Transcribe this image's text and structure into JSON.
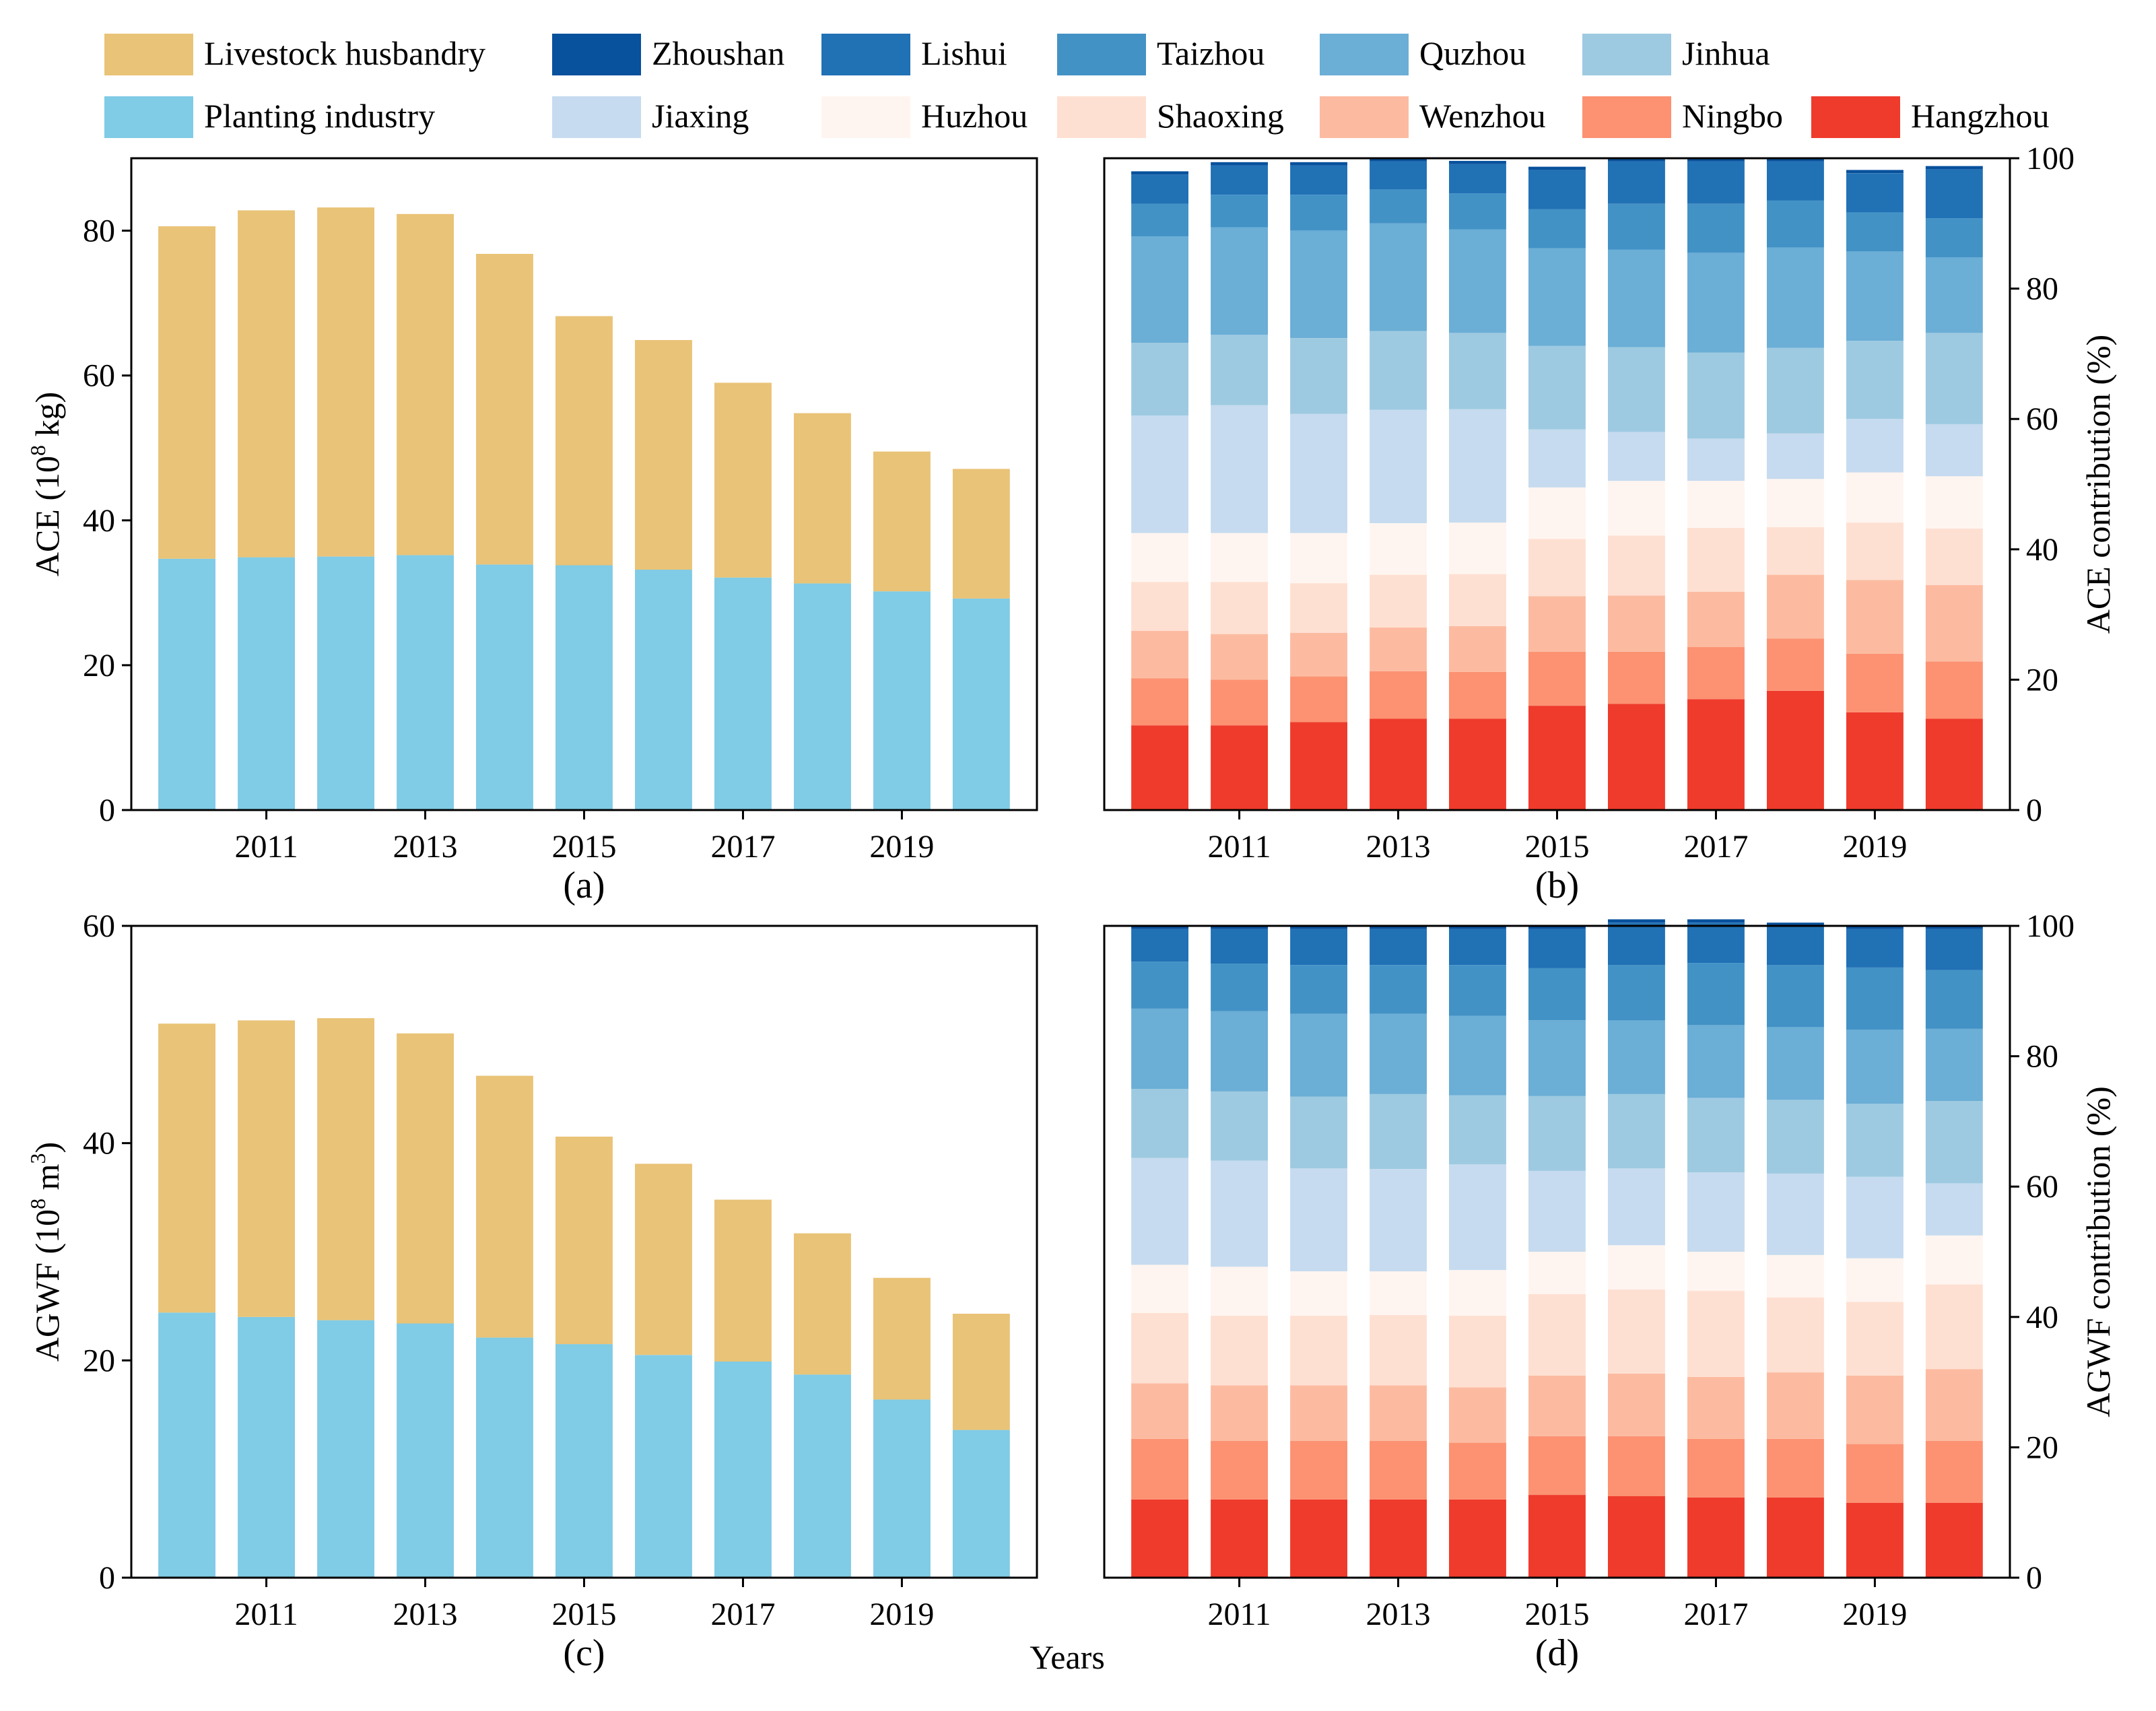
{
  "xlabel": "Years",
  "legend": {
    "items": [
      {
        "label": "Livestock husbandry",
        "color": "#E9C377"
      },
      {
        "label": "Zhoushan",
        "color": "#08519C"
      },
      {
        "label": "Lishui",
        "color": "#2171B5"
      },
      {
        "label": "Taizhou",
        "color": "#4292C6"
      },
      {
        "label": "Quzhou",
        "color": "#6BAED6"
      },
      {
        "label": "Jinhua",
        "color": "#9ECAE1"
      },
      {
        "label": "Planting industry",
        "color": "#80CBE5"
      },
      {
        "label": "Jiaxing",
        "color": "#C6DBEF"
      },
      {
        "label": "Huzhou",
        "color": "#FFF5F0"
      },
      {
        "label": "Shaoxing",
        "color": "#FEE0D2"
      },
      {
        "label": "Wenzhou",
        "color": "#FCBBA1"
      },
      {
        "label": "Ningbo",
        "color": "#FC9272"
      },
      {
        "label": "Hangzhou",
        "color": "#EF3B2C"
      }
    ]
  },
  "chart_data": [
    {
      "id": "a",
      "type": "bar",
      "stacked": true,
      "panel_label": "(a)",
      "ylabel": "ACE (10^8 kg)",
      "ylabel_parts": {
        "prefix": "ACE (10",
        "sup": "8",
        "suffix": " kg)"
      },
      "years": [
        2010,
        2011,
        2012,
        2013,
        2014,
        2015,
        2016,
        2017,
        2018,
        2019,
        2020
      ],
      "xticks": [
        "2011",
        "2013",
        "2015",
        "2017",
        "2019"
      ],
      "ylim": [
        0,
        90
      ],
      "yticks": [
        "0",
        "20",
        "40",
        "60",
        "80"
      ],
      "series": [
        {
          "name": "Planting industry",
          "color": "#80CBE5",
          "values": [
            34.7,
            34.9,
            35.0,
            35.2,
            33.9,
            33.8,
            33.2,
            32.1,
            31.3,
            30.2,
            29.2
          ]
        },
        {
          "name": "Livestock husbandry",
          "color": "#E9C377",
          "values": [
            45.9,
            47.9,
            48.2,
            47.1,
            42.9,
            34.4,
            31.7,
            26.9,
            23.5,
            19.3,
            17.9
          ]
        }
      ]
    },
    {
      "id": "b",
      "type": "bar",
      "stacked": true,
      "percent": true,
      "panel_label": "(b)",
      "ylabel": "ACE contribution (%)",
      "years": [
        2010,
        2011,
        2012,
        2013,
        2014,
        2015,
        2016,
        2017,
        2018,
        2019,
        2020
      ],
      "xticks": [
        "2011",
        "2013",
        "2015",
        "2017",
        "2019"
      ],
      "ylim": [
        0,
        100
      ],
      "yticks": [
        "0",
        "20",
        "40",
        "60",
        "80",
        "100"
      ],
      "series": [
        {
          "name": "Hangzhou",
          "color": "#EF3B2C",
          "values": [
            13.0,
            13.0,
            13.5,
            14.0,
            14.0,
            16.0,
            16.3,
            17.0,
            18.3,
            15.0,
            14.0
          ]
        },
        {
          "name": "Ningbo",
          "color": "#FC9272",
          "values": [
            7.2,
            7.0,
            7.0,
            7.3,
            7.2,
            8.3,
            8.0,
            8.0,
            8.0,
            9.0,
            8.8
          ]
        },
        {
          "name": "Wenzhou",
          "color": "#FCBBA1",
          "values": [
            7.3,
            7.0,
            6.7,
            6.7,
            7.0,
            8.5,
            8.6,
            8.5,
            9.8,
            11.3,
            11.7
          ]
        },
        {
          "name": "Shaoxing",
          "color": "#FEE0D2",
          "values": [
            7.5,
            8.0,
            7.6,
            8.1,
            8.0,
            8.8,
            9.2,
            9.8,
            7.3,
            8.8,
            8.7
          ]
        },
        {
          "name": "Huzhou",
          "color": "#FFF5F0",
          "values": [
            7.5,
            7.5,
            7.7,
            7.9,
            7.9,
            7.9,
            8.4,
            7.2,
            7.4,
            7.7,
            8.0
          ]
        },
        {
          "name": "Jiaxing",
          "color": "#C6DBEF",
          "values": [
            18.0,
            19.6,
            18.3,
            17.4,
            17.4,
            8.9,
            7.5,
            6.5,
            7.0,
            8.2,
            8.0
          ]
        },
        {
          "name": "Jinhua",
          "color": "#9ECAE1",
          "values": [
            11.2,
            10.8,
            11.6,
            12.1,
            11.7,
            12.8,
            13.0,
            13.2,
            13.1,
            12.0,
            14.0
          ]
        },
        {
          "name": "Quzhou",
          "color": "#6BAED6",
          "values": [
            16.3,
            16.5,
            16.5,
            16.5,
            15.9,
            15.0,
            15.0,
            15.3,
            15.4,
            13.7,
            11.6
          ]
        },
        {
          "name": "Taizhou",
          "color": "#4292C6",
          "values": [
            5.0,
            5.0,
            5.5,
            5.2,
            5.5,
            6.0,
            7.0,
            7.5,
            7.2,
            6.0,
            6.0
          ]
        },
        {
          "name": "Lishui",
          "color": "#2171B5",
          "values": [
            4.5,
            4.5,
            4.5,
            4.3,
            4.5,
            6.0,
            6.5,
            6.5,
            6.0,
            6.0,
            7.5
          ]
        },
        {
          "name": "Zhoushan",
          "color": "#08519C",
          "values": [
            0.5,
            0.5,
            0.5,
            0.5,
            0.5,
            0.5,
            0.5,
            0.5,
            0.5,
            0.5,
            0.5
          ]
        }
      ]
    },
    {
      "id": "c",
      "type": "bar",
      "stacked": true,
      "panel_label": "(c)",
      "ylabel": "AGWF (10^8 m^3)",
      "ylabel_parts": {
        "prefix": "AGWF (10",
        "sup": "8",
        "mid": " m",
        "sup2": "3",
        "suffix": ")"
      },
      "years": [
        2010,
        2011,
        2012,
        2013,
        2014,
        2015,
        2016,
        2017,
        2018,
        2019,
        2020
      ],
      "xticks": [
        "2011",
        "2013",
        "2015",
        "2017",
        "2019"
      ],
      "ylim": [
        0,
        60
      ],
      "yticks": [
        "0",
        "20",
        "40",
        "60"
      ],
      "series": [
        {
          "name": "Planting industry",
          "color": "#80CBE5",
          "values": [
            24.4,
            24.0,
            23.7,
            23.4,
            22.1,
            21.5,
            20.5,
            19.9,
            18.7,
            16.4,
            13.6
          ]
        },
        {
          "name": "Livestock husbandry",
          "color": "#E9C377",
          "values": [
            26.6,
            27.3,
            27.8,
            26.7,
            24.1,
            19.1,
            17.6,
            14.9,
            13.0,
            11.2,
            10.7
          ]
        }
      ]
    },
    {
      "id": "d",
      "type": "bar",
      "stacked": true,
      "percent": true,
      "panel_label": "(d)",
      "ylabel": "AGWF contribution (%)",
      "years": [
        2010,
        2011,
        2012,
        2013,
        2014,
        2015,
        2016,
        2017,
        2018,
        2019,
        2020
      ],
      "xticks": [
        "2011",
        "2013",
        "2015",
        "2017",
        "2019"
      ],
      "ylim": [
        0,
        100
      ],
      "yticks": [
        "0",
        "20",
        "40",
        "60",
        "80",
        "100"
      ],
      "series": [
        {
          "name": "Hangzhou",
          "color": "#EF3B2C",
          "values": [
            12.0,
            12.0,
            12.0,
            12.0,
            12.0,
            12.7,
            12.5,
            12.3,
            12.3,
            11.5,
            11.5
          ]
        },
        {
          "name": "Ningbo",
          "color": "#FC9272",
          "values": [
            9.3,
            9.0,
            9.0,
            9.0,
            8.7,
            9.0,
            9.2,
            9.0,
            9.0,
            9.0,
            9.5
          ]
        },
        {
          "name": "Wenzhou",
          "color": "#FCBBA1",
          "values": [
            8.5,
            8.5,
            8.5,
            8.5,
            8.5,
            9.3,
            9.6,
            9.5,
            10.2,
            10.5,
            11.0
          ]
        },
        {
          "name": "Shaoxing",
          "color": "#FEE0D2",
          "values": [
            10.8,
            10.7,
            10.7,
            10.8,
            11.0,
            12.5,
            12.9,
            13.2,
            11.5,
            11.3,
            13.0
          ]
        },
        {
          "name": "Huzhou",
          "color": "#FFF5F0",
          "values": [
            7.4,
            7.5,
            6.8,
            6.7,
            7.0,
            6.5,
            6.8,
            6.0,
            6.5,
            6.7,
            7.5
          ]
        },
        {
          "name": "Jiaxing",
          "color": "#C6DBEF",
          "values": [
            16.4,
            16.3,
            15.8,
            15.7,
            16.2,
            12.4,
            11.8,
            12.2,
            12.5,
            12.5,
            8.0
          ]
        },
        {
          "name": "Jinhua",
          "color": "#9ECAE1",
          "values": [
            10.6,
            10.6,
            11.0,
            11.5,
            10.6,
            11.5,
            11.4,
            11.4,
            11.3,
            11.2,
            12.6
          ]
        },
        {
          "name": "Quzhou",
          "color": "#6BAED6",
          "values": [
            12.3,
            12.3,
            12.7,
            12.3,
            12.2,
            11.6,
            11.3,
            11.2,
            11.2,
            11.4,
            11.1
          ]
        },
        {
          "name": "Taizhou",
          "color": "#4292C6",
          "values": [
            7.2,
            7.3,
            7.5,
            7.5,
            7.8,
            8.0,
            8.5,
            9.5,
            9.5,
            9.5,
            9.0
          ]
        },
        {
          "name": "Lishui",
          "color": "#2171B5",
          "values": [
            5.0,
            5.3,
            5.5,
            5.5,
            5.5,
            6.0,
            6.5,
            6.2,
            6.0,
            5.9,
            6.3
          ]
        },
        {
          "name": "Zhoushan",
          "color": "#08519C",
          "values": [
            0.5,
            0.5,
            0.5,
            0.5,
            0.5,
            0.5,
            0.5,
            0.5,
            0.5,
            0.5,
            0.5
          ]
        }
      ]
    }
  ]
}
